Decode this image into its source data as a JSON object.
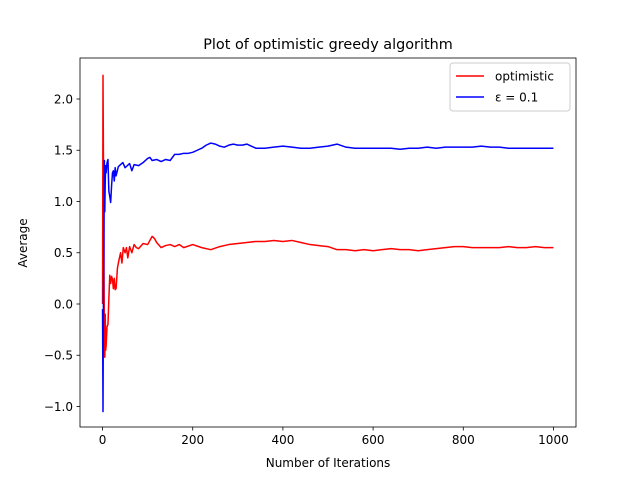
{
  "chart_data": {
    "type": "line",
    "title": "Plot of optimistic greedy algorithm",
    "xlabel": "Number of Iterations",
    "ylabel": "Average",
    "xlim": [
      -50,
      1050
    ],
    "ylim": [
      -1.2,
      2.4
    ],
    "xticks": [
      0,
      200,
      400,
      600,
      800,
      1000
    ],
    "xtick_labels": [
      "0",
      "200",
      "400",
      "600",
      "800",
      "1000"
    ],
    "yticks": [
      -1.0,
      -0.5,
      0.0,
      0.5,
      1.0,
      1.5,
      2.0
    ],
    "ytick_labels": [
      "−1.0",
      "−0.5",
      "0.0",
      "0.5",
      "1.0",
      "1.5",
      "2.0"
    ],
    "grid": false,
    "legend_position": "top-right",
    "series": [
      {
        "name": "optimistic",
        "color": "#ff0000",
        "points": [
          [
            0,
            0.0
          ],
          [
            1,
            2.23
          ],
          [
            2,
            1.4
          ],
          [
            3,
            0.6
          ],
          [
            4,
            -0.35
          ],
          [
            5,
            -0.52
          ],
          [
            6,
            -0.1
          ],
          [
            7,
            -0.45
          ],
          [
            8,
            -0.4
          ],
          [
            10,
            -0.22
          ],
          [
            12,
            -0.2
          ],
          [
            14,
            0.05
          ],
          [
            16,
            0.28
          ],
          [
            18,
            0.2
          ],
          [
            20,
            0.27
          ],
          [
            22,
            0.24
          ],
          [
            24,
            0.15
          ],
          [
            26,
            0.25
          ],
          [
            28,
            0.14
          ],
          [
            30,
            0.15
          ],
          [
            33,
            0.35
          ],
          [
            36,
            0.42
          ],
          [
            40,
            0.5
          ],
          [
            43,
            0.4
          ],
          [
            46,
            0.55
          ],
          [
            50,
            0.5
          ],
          [
            53,
            0.55
          ],
          [
            56,
            0.45
          ],
          [
            60,
            0.56
          ],
          [
            65,
            0.5
          ],
          [
            70,
            0.58
          ],
          [
            75,
            0.55
          ],
          [
            80,
            0.54
          ],
          [
            90,
            0.59
          ],
          [
            100,
            0.58
          ],
          [
            105,
            0.62
          ],
          [
            110,
            0.66
          ],
          [
            115,
            0.64
          ],
          [
            120,
            0.6
          ],
          [
            130,
            0.55
          ],
          [
            140,
            0.57
          ],
          [
            150,
            0.58
          ],
          [
            160,
            0.56
          ],
          [
            170,
            0.58
          ],
          [
            180,
            0.55
          ],
          [
            200,
            0.58
          ],
          [
            220,
            0.55
          ],
          [
            240,
            0.53
          ],
          [
            260,
            0.56
          ],
          [
            280,
            0.58
          ],
          [
            300,
            0.59
          ],
          [
            320,
            0.6
          ],
          [
            340,
            0.61
          ],
          [
            360,
            0.61
          ],
          [
            380,
            0.62
          ],
          [
            400,
            0.61
          ],
          [
            420,
            0.62
          ],
          [
            440,
            0.6
          ],
          [
            460,
            0.58
          ],
          [
            480,
            0.57
          ],
          [
            500,
            0.56
          ],
          [
            520,
            0.53
          ],
          [
            540,
            0.53
          ],
          [
            560,
            0.52
          ],
          [
            580,
            0.53
          ],
          [
            600,
            0.52
          ],
          [
            620,
            0.53
          ],
          [
            640,
            0.54
          ],
          [
            660,
            0.53
          ],
          [
            680,
            0.53
          ],
          [
            700,
            0.52
          ],
          [
            720,
            0.53
          ],
          [
            740,
            0.54
          ],
          [
            760,
            0.55
          ],
          [
            780,
            0.56
          ],
          [
            800,
            0.56
          ],
          [
            820,
            0.55
          ],
          [
            840,
            0.55
          ],
          [
            860,
            0.55
          ],
          [
            880,
            0.55
          ],
          [
            900,
            0.56
          ],
          [
            920,
            0.55
          ],
          [
            940,
            0.55
          ],
          [
            960,
            0.56
          ],
          [
            980,
            0.55
          ],
          [
            1000,
            0.55
          ]
        ]
      },
      {
        "name": "ε = 0.1",
        "color": "#0000ff",
        "points": [
          [
            0,
            -0.05
          ],
          [
            1,
            -1.05
          ],
          [
            2,
            0.1
          ],
          [
            3,
            0.5
          ],
          [
            4,
            1.4
          ],
          [
            5,
            0.9
          ],
          [
            6,
            1.2
          ],
          [
            7,
            1.35
          ],
          [
            8,
            1.28
          ],
          [
            10,
            1.38
          ],
          [
            12,
            1.41
          ],
          [
            14,
            1.1
          ],
          [
            16,
            1.05
          ],
          [
            18,
            0.99
          ],
          [
            20,
            1.15
          ],
          [
            22,
            1.28
          ],
          [
            24,
            1.3
          ],
          [
            26,
            1.2
          ],
          [
            28,
            1.33
          ],
          [
            30,
            1.25
          ],
          [
            35,
            1.34
          ],
          [
            40,
            1.36
          ],
          [
            45,
            1.38
          ],
          [
            50,
            1.33
          ],
          [
            55,
            1.35
          ],
          [
            60,
            1.37
          ],
          [
            65,
            1.3
          ],
          [
            70,
            1.36
          ],
          [
            80,
            1.35
          ],
          [
            90,
            1.38
          ],
          [
            100,
            1.42
          ],
          [
            105,
            1.43
          ],
          [
            110,
            1.4
          ],
          [
            120,
            1.41
          ],
          [
            130,
            1.39
          ],
          [
            140,
            1.41
          ],
          [
            150,
            1.4
          ],
          [
            160,
            1.46
          ],
          [
            170,
            1.46
          ],
          [
            180,
            1.47
          ],
          [
            190,
            1.47
          ],
          [
            200,
            1.48
          ],
          [
            210,
            1.5
          ],
          [
            220,
            1.52
          ],
          [
            230,
            1.55
          ],
          [
            240,
            1.57
          ],
          [
            250,
            1.56
          ],
          [
            260,
            1.54
          ],
          [
            270,
            1.53
          ],
          [
            280,
            1.55
          ],
          [
            290,
            1.56
          ],
          [
            300,
            1.55
          ],
          [
            310,
            1.55
          ],
          [
            320,
            1.56
          ],
          [
            330,
            1.54
          ],
          [
            340,
            1.52
          ],
          [
            360,
            1.52
          ],
          [
            380,
            1.53
          ],
          [
            400,
            1.54
          ],
          [
            420,
            1.53
          ],
          [
            440,
            1.52
          ],
          [
            460,
            1.52
          ],
          [
            480,
            1.53
          ],
          [
            500,
            1.54
          ],
          [
            520,
            1.56
          ],
          [
            540,
            1.53
          ],
          [
            560,
            1.52
          ],
          [
            580,
            1.52
          ],
          [
            600,
            1.52
          ],
          [
            620,
            1.52
          ],
          [
            640,
            1.52
          ],
          [
            660,
            1.51
          ],
          [
            680,
            1.52
          ],
          [
            700,
            1.52
          ],
          [
            720,
            1.53
          ],
          [
            740,
            1.52
          ],
          [
            760,
            1.53
          ],
          [
            780,
            1.53
          ],
          [
            800,
            1.53
          ],
          [
            820,
            1.53
          ],
          [
            840,
            1.54
          ],
          [
            860,
            1.53
          ],
          [
            880,
            1.53
          ],
          [
            900,
            1.52
          ],
          [
            920,
            1.52
          ],
          [
            940,
            1.52
          ],
          [
            960,
            1.52
          ],
          [
            980,
            1.52
          ],
          [
            1000,
            1.52
          ]
        ]
      }
    ]
  }
}
